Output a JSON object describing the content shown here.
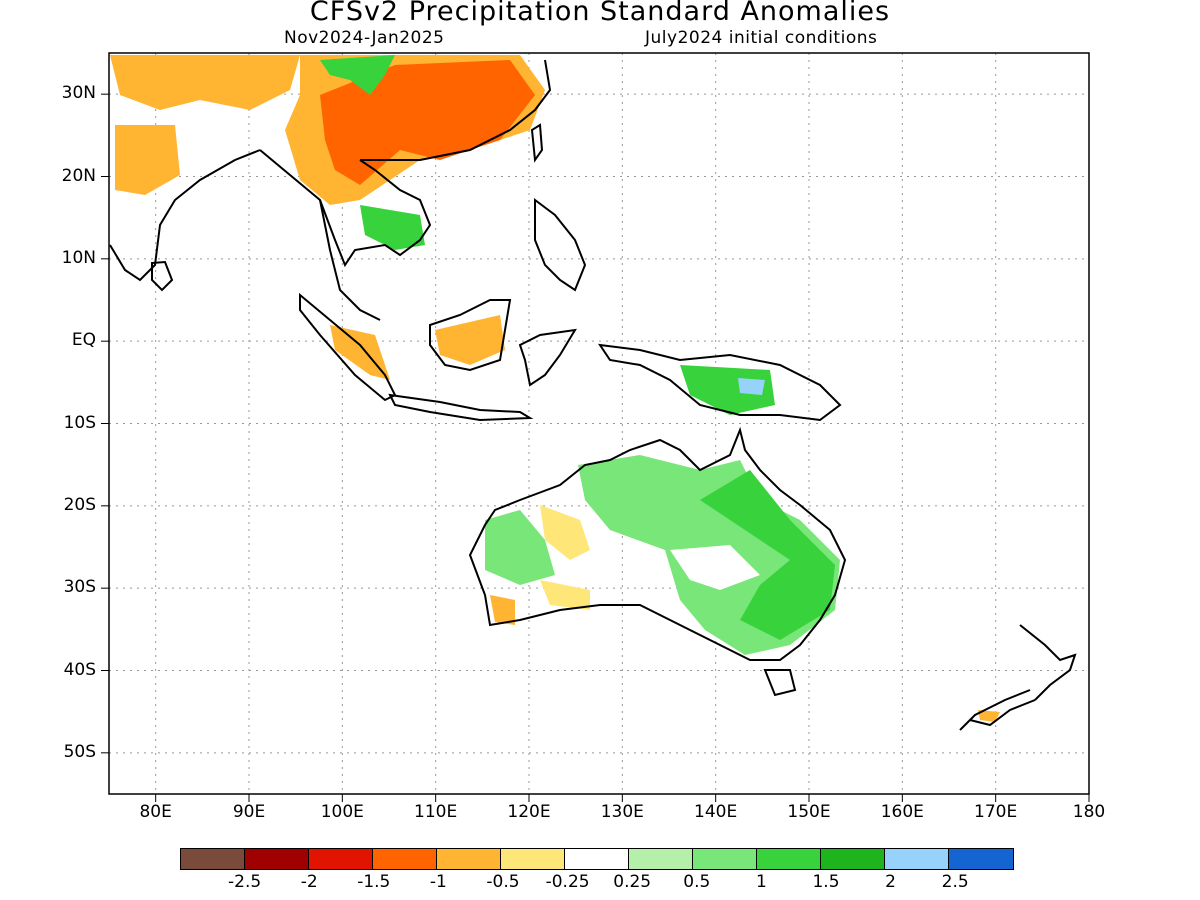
{
  "header": {
    "title": "CFSv2 Precipitation Standard Anomalies",
    "period": "Nov2024-Jan2025",
    "init": "July2024 initial conditions"
  },
  "map": {
    "lon_range": [
      75,
      180
    ],
    "lat_range": [
      -55,
      35
    ],
    "grid": "dotted",
    "lat_ticks": [
      {
        "value": 30,
        "label": "30N"
      },
      {
        "value": 20,
        "label": "20N"
      },
      {
        "value": 10,
        "label": "10N"
      },
      {
        "value": 0,
        "label": "EQ"
      },
      {
        "value": -10,
        "label": "10S"
      },
      {
        "value": -20,
        "label": "20S"
      },
      {
        "value": -30,
        "label": "30S"
      },
      {
        "value": -40,
        "label": "40S"
      },
      {
        "value": -50,
        "label": "50S"
      }
    ],
    "lon_ticks": [
      {
        "value": 80,
        "label": "80E"
      },
      {
        "value": 90,
        "label": "90E"
      },
      {
        "value": 100,
        "label": "100E"
      },
      {
        "value": 110,
        "label": "110E"
      },
      {
        "value": 120,
        "label": "120E"
      },
      {
        "value": 130,
        "label": "130E"
      },
      {
        "value": 140,
        "label": "140E"
      },
      {
        "value": 150,
        "label": "150E"
      },
      {
        "value": 160,
        "label": "160E"
      },
      {
        "value": 170,
        "label": "170E"
      },
      {
        "value": 180,
        "label": "180"
      }
    ]
  },
  "legend": {
    "colors": [
      "#7a4a3a",
      "#a00000",
      "#e01400",
      "#ff6400",
      "#ffb432",
      "#ffe678",
      "#ffffff",
      "#b4f0aa",
      "#78e678",
      "#37d23c",
      "#1eb41e",
      "#96d2fa",
      "#1464d2"
    ],
    "labels": [
      "-2.5",
      "-2",
      "-1.5",
      "-1",
      "-0.5",
      "-0.25",
      "0.25",
      "0.5",
      "1",
      "1.5",
      "2",
      "2.5"
    ]
  }
}
